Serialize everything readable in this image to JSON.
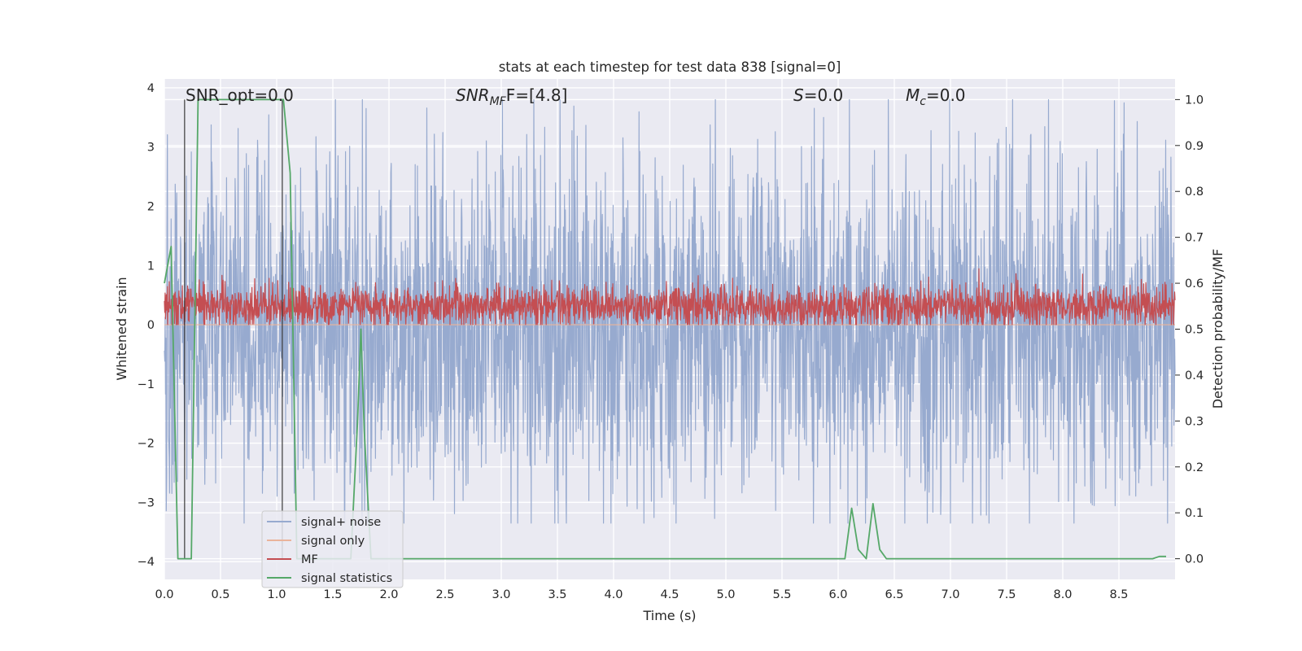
{
  "chart_data": {
    "type": "line",
    "title": "stats at each timestep for test data 838 [signal=0]",
    "xlabel": "Time (s)",
    "ylabel": "Whitened strain",
    "y2label": "Detection probability/MF",
    "xlim": [
      0.0,
      9.0
    ],
    "ylim": [
      -4.3,
      4.15
    ],
    "y2lim": [
      -0.045,
      1.045
    ],
    "x_ticks": [
      "0.0",
      "0.5",
      "1.0",
      "1.5",
      "2.0",
      "2.5",
      "3.0",
      "3.5",
      "4.0",
      "4.5",
      "5.0",
      "5.5",
      "6.0",
      "6.5",
      "7.0",
      "7.5",
      "8.0",
      "8.5"
    ],
    "y_ticks": [
      "−4",
      "−3",
      "−2",
      "−1",
      "0",
      "1",
      "2",
      "3",
      "4"
    ],
    "y2_ticks": [
      "0.0",
      "0.1",
      "0.2",
      "0.3",
      "0.4",
      "0.5",
      "0.6",
      "0.7",
      "0.8",
      "0.9",
      "1.0"
    ],
    "grid": true,
    "legend_position": "lower-left",
    "annotations": {
      "snr_opt": "SNR_opt=0.0",
      "snr_mf_sym": "SNR",
      "snr_mf_sub": "MF",
      "snr_mf_rest": "F=[4.8]",
      "s_sym": "S",
      "s_rest": "=0.0",
      "mc_sym": "M",
      "mc_sub": "c",
      "mc_rest": "=0.0"
    },
    "series": [
      {
        "name": "signal+ noise",
        "color": "#97aacf",
        "axis": "left",
        "style": "noise",
        "sample_rate_hz": 300,
        "band_low": -1.7,
        "band_high": 1.55,
        "extreme_min": -3.35,
        "extreme_max": 3.8
      },
      {
        "name": "signal only",
        "color": "#eab49b",
        "axis": "left",
        "x": [
          0.0,
          9.0
        ],
        "y": [
          0.0,
          0.0
        ]
      },
      {
        "name": "MF",
        "color": "#c44e52",
        "axis": "right",
        "style": "noise",
        "sample_rate_hz": 300,
        "band_low": 0.52,
        "band_high": 0.58,
        "extreme_min": 0.51,
        "extreme_max": 0.64
      },
      {
        "name": "signal statistics",
        "color": "#55a868",
        "axis": "right",
        "x": [
          0.0,
          0.06,
          0.12,
          0.18,
          0.24,
          0.3,
          0.36,
          0.42,
          0.48,
          0.54,
          0.6,
          0.66,
          0.72,
          0.78,
          0.84,
          0.9,
          0.96,
          1.02,
          1.06,
          1.12,
          1.18,
          1.24,
          1.3,
          1.36,
          1.42,
          1.48,
          1.54,
          1.6,
          1.66,
          1.72,
          1.75,
          1.78,
          1.84,
          1.9,
          1.96,
          2.0,
          3.0,
          4.0,
          5.0,
          6.0,
          6.06,
          6.12,
          6.18,
          6.25,
          6.31,
          6.37,
          6.43,
          7.0,
          8.0,
          8.8,
          8.86,
          8.92
        ],
        "y": [
          0.6,
          0.68,
          0.0,
          0.0,
          0.0,
          1.0,
          1.0,
          1.0,
          1.0,
          1.0,
          1.0,
          1.0,
          1.0,
          1.0,
          1.0,
          1.0,
          1.0,
          1.0,
          1.0,
          0.84,
          0.0,
          0.0,
          0.0,
          0.0,
          0.0,
          0.0,
          0.0,
          0.0,
          0.0,
          0.3,
          0.5,
          0.28,
          0.0,
          0.0,
          0.0,
          0.0,
          0.0,
          0.0,
          0.0,
          0.0,
          0.0,
          0.11,
          0.02,
          0.0,
          0.12,
          0.02,
          0.0,
          0.0,
          0.0,
          0.0,
          0.005,
          0.005
        ]
      }
    ]
  }
}
